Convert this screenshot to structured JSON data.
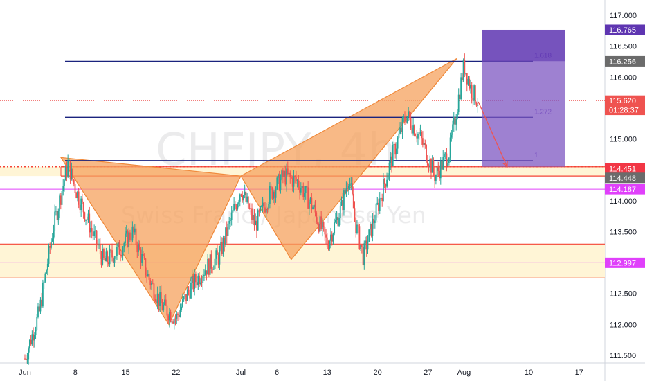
{
  "symbol_watermark": "CHFJPY, 4h",
  "description_watermark": "Swiss Franc / Japanese Yen",
  "colors": {
    "up": "#26a69a",
    "down": "#ef5350",
    "pattern_fill": "#f5a25d",
    "pattern_stroke": "#f08a3c",
    "fib_line": "#1a237e",
    "support_zone": "#fff5d6",
    "support_line": "#f44336",
    "magenta_line": "#e040fb",
    "target_box": "#7e57c2",
    "stop_box": "#5e35b1"
  },
  "chart_data": {
    "type": "candlestick",
    "symbol": "CHFJPY",
    "timeframe": "4h",
    "y_axis": {
      "range": [
        111.4,
        117.3
      ],
      "ticks": [
        "117.000",
        "116.500",
        "116.000",
        "115.500",
        "115.000",
        "114.500",
        "114.000",
        "113.500",
        "113.000",
        "112.500",
        "112.000",
        "111.500"
      ]
    },
    "x_axis": {
      "ticks": [
        "Jun",
        "8",
        "15",
        "22",
        "Jul",
        "6",
        "13",
        "20",
        "27",
        "Aug",
        "10",
        "17"
      ]
    },
    "price_path": [
      [
        "2020-06-01",
        111.45
      ],
      [
        "2020-06-03",
        112.2
      ],
      [
        "2020-06-05",
        113.6
      ],
      [
        "2020-06-07",
        114.6
      ],
      [
        "2020-06-08",
        114.2
      ],
      [
        "2020-06-10",
        113.6
      ],
      [
        "2020-06-12",
        113.0
      ],
      [
        "2020-06-14",
        113.2
      ],
      [
        "2020-06-16",
        113.5
      ],
      [
        "2020-06-18",
        112.8
      ],
      [
        "2020-06-20",
        112.3
      ],
      [
        "2020-06-22",
        112.1
      ],
      [
        "2020-06-24",
        112.6
      ],
      [
        "2020-06-26",
        112.9
      ],
      [
        "2020-06-28",
        113.1
      ],
      [
        "2020-07-01",
        114.2
      ],
      [
        "2020-07-03",
        113.6
      ],
      [
        "2020-07-05",
        114.1
      ],
      [
        "2020-07-07",
        114.4
      ],
      [
        "2020-07-09",
        114.3
      ],
      [
        "2020-07-11",
        113.9
      ],
      [
        "2020-07-13",
        113.3
      ],
      [
        "2020-07-15",
        113.9
      ],
      [
        "2020-07-16",
        114.4
      ],
      [
        "2020-07-17",
        113.6
      ],
      [
        "2020-07-18",
        113.1
      ],
      [
        "2020-07-20",
        113.9
      ],
      [
        "2020-07-22",
        114.7
      ],
      [
        "2020-07-24",
        115.4
      ],
      [
        "2020-07-26",
        115.0
      ],
      [
        "2020-07-28",
        114.4
      ],
      [
        "2020-07-30",
        114.8
      ],
      [
        "2020-08-01",
        116.2
      ],
      [
        "2020-08-02",
        115.8
      ],
      [
        "2020-08-03",
        115.6
      ]
    ],
    "harmonic_pattern": [
      [
        "2020-06-06",
        114.7
      ],
      [
        "2020-06-21",
        112.0
      ],
      [
        "2020-07-01",
        114.4
      ],
      [
        "2020-07-08",
        113.05
      ],
      [
        "2020-07-31",
        116.3
      ]
    ],
    "fib_levels": [
      {
        "ratio": 1.618,
        "label": "1.618",
        "price": 116.256
      },
      {
        "ratio": 1.272,
        "label": "1.272",
        "price": 115.35
      },
      {
        "ratio": 1,
        "label": "1",
        "price": 114.65
      }
    ],
    "support_zones": [
      [
        114.4,
        114.55
      ],
      [
        112.75,
        113.3
      ]
    ],
    "target_arrow": [
      [
        "2020-08-03",
        115.6
      ],
      [
        "2020-08-07",
        114.55
      ]
    ],
    "position": {
      "stop": 116.765,
      "entry": 116.256,
      "target": 114.55
    },
    "price_labels": [
      {
        "text": "116.765",
        "color": "#5e35b1"
      },
      {
        "text": "116.256",
        "color": "#6b6b6b"
      },
      {
        "text": "115.620",
        "color": "#ef5350"
      },
      {
        "text": "01:28:37",
        "color": "#ef5350"
      },
      {
        "text": "114.451",
        "color": "#f23645"
      },
      {
        "text": "114.448",
        "color": "#6b6b6b"
      },
      {
        "text": "114.187",
        "color": "#e040fb"
      },
      {
        "text": "112.997",
        "color": "#e040fb"
      }
    ]
  }
}
